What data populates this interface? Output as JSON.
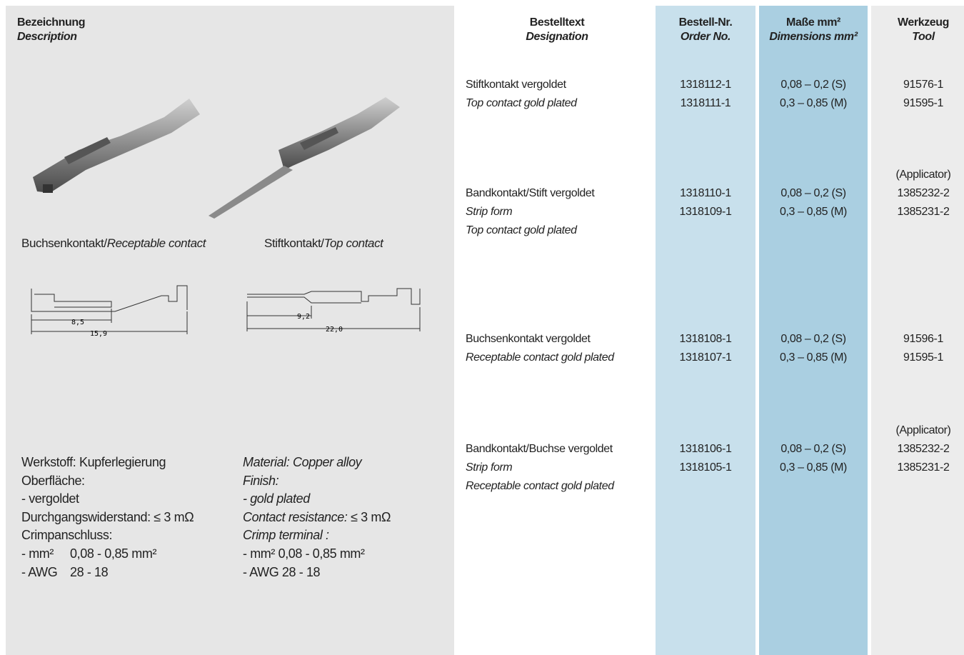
{
  "header": {
    "description": {
      "de": "Bezeichnung",
      "en": "Description"
    },
    "designation": {
      "de": "Bestelltext",
      "en": "Designation"
    },
    "order_no": {
      "de": "Bestell-Nr.",
      "en": "Order No."
    },
    "dimensions": {
      "de": "Maße mm²",
      "en": "Dimensions mm²"
    },
    "tool": {
      "de": "Werkzeug",
      "en": "Tool"
    }
  },
  "products": [
    {
      "caption_de": "Buchsenkontakt/",
      "caption_en": "Receptable contact",
      "dims": [
        "8,5",
        "15,9"
      ]
    },
    {
      "caption_de": "Stiftkontakt/",
      "caption_en": "Top contact",
      "dims": [
        "9,2",
        "22,0"
      ]
    }
  ],
  "material": {
    "de": [
      "Werkstoff: Kupferlegierung",
      "Oberfläche:",
      "- vergoldet",
      "Durchgangswiderstand: ≤ 3 mΩ",
      "Crimpanschluss:"
    ],
    "de_specs": [
      [
        "- mm²",
        "0,08 - 0,85 mm²"
      ],
      [
        "- AWG",
        "28 - 18"
      ]
    ],
    "en": [
      "Material: Copper alloy",
      "Finish:",
      "- gold plated"
    ],
    "en_resistance": [
      "Contact resistance:",
      "≤ 3 mΩ"
    ],
    "en_crimp": "Crimp terminal :",
    "en_specs": [
      "- mm² 0,08 - 0,85 mm²",
      "- AWG 28 - 18"
    ]
  },
  "rows": [
    {
      "designation": [
        "Stiftkontakt vergoldet",
        "Top contact gold plated"
      ],
      "order_nos": [
        "1318112-1",
        "1318111-1"
      ],
      "dimensions": [
        "0,08 – 0,2 (S)",
        "0,3 – 0,85 (M)"
      ],
      "tools": [
        "91576-1",
        "91595-1"
      ]
    },
    {
      "designation": [
        "Bandkontakt/Stift vergoldet",
        "Strip form",
        "Top contact gold plated"
      ],
      "order_nos": [
        "1318110-1",
        "1318109-1"
      ],
      "dimensions": [
        "0,08 – 0,2 (S)",
        "0,3 – 0,85 (M)"
      ],
      "tools": [
        "(Applicator)",
        "1385232-2",
        "1385231-2"
      ]
    },
    {
      "designation": [
        "Buchsenkontakt vergoldet",
        "Receptable contact gold plated"
      ],
      "order_nos": [
        "1318108-1",
        "1318107-1"
      ],
      "dimensions": [
        "0,08 – 0,2 (S)",
        "0,3 – 0,85 (M)"
      ],
      "tools": [
        "91596-1",
        "91595-1"
      ]
    },
    {
      "designation": [
        "Bandkontakt/Buchse vergoldet",
        "Strip form",
        "Receptable contact gold plated"
      ],
      "order_nos": [
        "1318106-1",
        "1318105-1"
      ],
      "dimensions": [
        "0,08 – 0,2 (S)",
        "0,3 – 0,85 (M)"
      ],
      "tools": [
        "(Applicator)",
        "1385232-2",
        "1385231-2"
      ]
    }
  ]
}
